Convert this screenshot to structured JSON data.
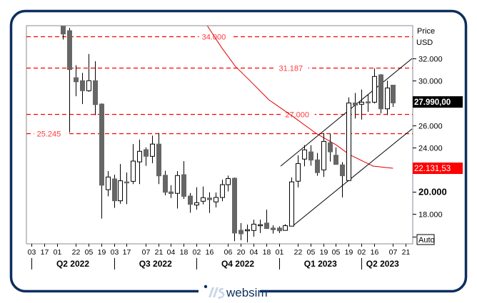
{
  "brand": {
    "name": "websim",
    "frame_color": "#0d2f5f",
    "logo_accent": "#c9d6e6"
  },
  "chart_data": {
    "type": "candlestick",
    "interval": "weekly",
    "price_axis": {
      "title": "Price",
      "unit": "USD",
      "ticks": [
        "32.000",
        "30.000",
        "26.000",
        "24.000",
        "20.000",
        "18.000"
      ],
      "tick_values": [
        32,
        30,
        26,
        24,
        20,
        18
      ],
      "bold_tick": "20.000",
      "auto_label": "Auto"
    },
    "ylim": [
      15.33,
      34.95
    ],
    "xlim": [
      "2022-04-03",
      "2023-05-28"
    ],
    "x_ticks": [
      {
        "date": "2022-04-03",
        "label": "03"
      },
      {
        "date": "2022-04-17",
        "label": "17"
      },
      {
        "date": "2022-05-01",
        "label": "01"
      },
      {
        "date": "2022-05-22",
        "label": "22"
      },
      {
        "date": "2022-06-05",
        "label": "05"
      },
      {
        "date": "2022-06-19",
        "label": "19"
      },
      {
        "date": "2022-07-03",
        "label": "03"
      },
      {
        "date": "2022-07-17",
        "label": "17"
      },
      {
        "date": "2022-08-07",
        "label": "07"
      },
      {
        "date": "2022-08-21",
        "label": "21"
      },
      {
        "date": "2022-09-04",
        "label": "04"
      },
      {
        "date": "2022-09-18",
        "label": "18"
      },
      {
        "date": "2022-10-02",
        "label": "02"
      },
      {
        "date": "2022-10-16",
        "label": "16"
      },
      {
        "date": "2022-11-06",
        "label": "06"
      },
      {
        "date": "2022-11-20",
        "label": "20"
      },
      {
        "date": "2022-12-04",
        "label": "04"
      },
      {
        "date": "2022-12-18",
        "label": "18"
      },
      {
        "date": "2023-01-01",
        "label": "01"
      },
      {
        "date": "2023-01-22",
        "label": "22"
      },
      {
        "date": "2023-02-05",
        "label": "05"
      },
      {
        "date": "2023-02-19",
        "label": "19"
      },
      {
        "date": "2023-03-05",
        "label": "05"
      },
      {
        "date": "2023-03-19",
        "label": "19"
      },
      {
        "date": "2023-04-02",
        "label": "02"
      },
      {
        "date": "2023-04-16",
        "label": "16"
      },
      {
        "date": "2023-05-07",
        "label": "07"
      },
      {
        "date": "2023-05-21",
        "label": "21"
      }
    ],
    "quarters": [
      {
        "start": "2022-04-03",
        "end": "2022-07-03",
        "label": "Q2 2022"
      },
      {
        "start": "2022-07-03",
        "end": "2022-10-02",
        "label": "Q3 2022"
      },
      {
        "start": "2022-10-02",
        "end": "2023-01-01",
        "label": "Q4 2022"
      },
      {
        "start": "2023-01-01",
        "end": "2023-04-02",
        "label": "Q1 2023"
      },
      {
        "start": "2023-04-02",
        "end": "2023-05-28",
        "label": "Q2 2023"
      }
    ],
    "candles_columns": [
      "date",
      "open",
      "high",
      "low",
      "close"
    ],
    "candles": [
      [
        "2022-05-08",
        35.2,
        35.5,
        33.7,
        34.2
      ],
      [
        "2022-05-15",
        34.5,
        34.75,
        25.35,
        31.0
      ],
      [
        "2022-05-22",
        30.27,
        31.4,
        28.6,
        29.9
      ],
      [
        "2022-05-29",
        30.0,
        30.7,
        27.9,
        29.1
      ],
      [
        "2022-06-05",
        29.1,
        32.4,
        29.0,
        30.0
      ],
      [
        "2022-06-12",
        30.0,
        31.75,
        26.9,
        27.85
      ],
      [
        "2022-06-19",
        27.9,
        27.96,
        17.6,
        20.6
      ],
      [
        "2022-06-26",
        20.2,
        21.87,
        19.6,
        21.34
      ],
      [
        "2022-07-03",
        21.17,
        21.55,
        18.56,
        19.2
      ],
      [
        "2022-07-10",
        19.2,
        22.5,
        18.94,
        21.0
      ],
      [
        "2022-07-17",
        20.9,
        21.75,
        18.9,
        20.85
      ],
      [
        "2022-07-24",
        20.95,
        24.3,
        20.7,
        22.77
      ],
      [
        "2022-07-31",
        22.7,
        24.7,
        20.7,
        23.65
      ],
      [
        "2022-08-07",
        23.8,
        24.0,
        22.34,
        23.2
      ],
      [
        "2022-08-14",
        23.2,
        25.06,
        22.58,
        24.3
      ],
      [
        "2022-08-21",
        24.3,
        25.3,
        20.7,
        21.44
      ],
      [
        "2022-08-28",
        21.5,
        21.9,
        19.7,
        19.97
      ],
      [
        "2022-09-04",
        20.0,
        20.6,
        19.45,
        19.85
      ],
      [
        "2022-09-11",
        19.87,
        21.87,
        18.5,
        21.47
      ],
      [
        "2022-09-18",
        21.55,
        22.77,
        19.37,
        19.6
      ],
      [
        "2022-09-25",
        19.63,
        19.9,
        18.13,
        18.88
      ],
      [
        "2022-10-02",
        18.82,
        20.42,
        18.4,
        19.03
      ],
      [
        "2022-10-09",
        19.16,
        20.48,
        18.88,
        19.48
      ],
      [
        "2022-10-16",
        19.45,
        19.97,
        18.1,
        19.3
      ],
      [
        "2022-10-23",
        19.1,
        19.95,
        18.6,
        19.5
      ],
      [
        "2022-10-30",
        19.5,
        21.1,
        19.16,
        20.65
      ],
      [
        "2022-11-06",
        20.65,
        21.47,
        20.04,
        21.2
      ],
      [
        "2022-11-13",
        21.23,
        21.3,
        15.57,
        16.3
      ],
      [
        "2022-11-20",
        16.55,
        17.2,
        15.65,
        16.23
      ],
      [
        "2022-11-27",
        16.5,
        17.06,
        15.46,
        16.6
      ],
      [
        "2022-12-04",
        16.53,
        17.5,
        15.97,
        17.1
      ],
      [
        "2022-12-11",
        17.0,
        17.5,
        16.3,
        17.05
      ],
      [
        "2022-12-18",
        17.2,
        18.4,
        16.68,
        16.7
      ],
      [
        "2022-12-25",
        16.75,
        17.0,
        16.25,
        16.6
      ],
      [
        "2023-01-01",
        16.75,
        16.9,
        16.3,
        16.5
      ],
      [
        "2023-01-08",
        16.54,
        17.1,
        16.54,
        16.96
      ],
      [
        "2023-01-15",
        16.92,
        21.3,
        16.92,
        20.9
      ],
      [
        "2023-01-22",
        20.96,
        23.3,
        20.4,
        22.55
      ],
      [
        "2023-01-29",
        22.95,
        24.2,
        22.3,
        23.78
      ],
      [
        "2023-02-05",
        23.6,
        24.2,
        22.36,
        22.86
      ],
      [
        "2023-02-12",
        22.88,
        23.5,
        21.45,
        21.73
      ],
      [
        "2023-02-19",
        21.98,
        25.3,
        21.35,
        24.54
      ],
      [
        "2023-02-26",
        24.42,
        25.25,
        22.73,
        23.6
      ],
      [
        "2023-03-05",
        23.3,
        24.0,
        22.47,
        22.47
      ],
      [
        "2023-03-12",
        22.43,
        22.68,
        19.5,
        21.45
      ],
      [
        "2023-03-19",
        21.02,
        28.5,
        20.97,
        28.0
      ],
      [
        "2023-03-26",
        28.0,
        28.9,
        26.6,
        27.8
      ],
      [
        "2023-04-02",
        27.88,
        29.2,
        26.5,
        28.07
      ],
      [
        "2023-04-09",
        28.1,
        28.75,
        27.2,
        28.0
      ],
      [
        "2023-04-16",
        28.07,
        31.1,
        27.96,
        30.38
      ],
      [
        "2023-04-23",
        30.53,
        30.6,
        27.06,
        27.47
      ],
      [
        "2023-04-30",
        27.47,
        30.0,
        26.9,
        29.35
      ],
      [
        "2023-05-07",
        29.6,
        29.6,
        27.64,
        28.0
      ]
    ],
    "moving_average": {
      "color": "#e00000",
      "points": [
        [
          "2022-10-14",
          34.95
        ],
        [
          "2022-10-30",
          32.96
        ],
        [
          "2022-11-14",
          31.29
        ],
        [
          "2022-11-30",
          30.01
        ],
        [
          "2022-12-21",
          28.28
        ],
        [
          "2023-01-16",
          26.81
        ],
        [
          "2023-02-11",
          25.27
        ],
        [
          "2023-03-05",
          24.24
        ],
        [
          "2023-03-20",
          23.35
        ],
        [
          "2023-04-05",
          22.71
        ],
        [
          "2023-04-15",
          22.32
        ],
        [
          "2023-05-07",
          22.13
        ]
      ],
      "last_value_label": "22.131,53"
    },
    "trend_channel": {
      "color": "#000000",
      "upper": [
        [
          "2023-01-03",
          22.32
        ],
        [
          "2023-05-28",
          32.0
        ]
      ],
      "lower": [
        [
          "2023-01-16",
          16.92
        ],
        [
          "2023-05-28",
          25.67
        ]
      ]
    },
    "horizontal_lines": [
      {
        "value": 34.0,
        "label": "34.000",
        "label_date": "2022-10-08"
      },
      {
        "value": 31.187,
        "label": "31.187",
        "label_date": "2023-01-01"
      },
      {
        "value": 27.0,
        "label": "27.000",
        "label_date": "2023-01-08"
      },
      {
        "value": 25.245,
        "label": "25.245",
        "label_date": "2022-04-09"
      }
    ],
    "hline_color": "#ff0000",
    "last_price_label": "27.990,00",
    "last_price_value": 27.99,
    "up_candle_color": "#ffffff",
    "down_candle_color": "#666666"
  }
}
